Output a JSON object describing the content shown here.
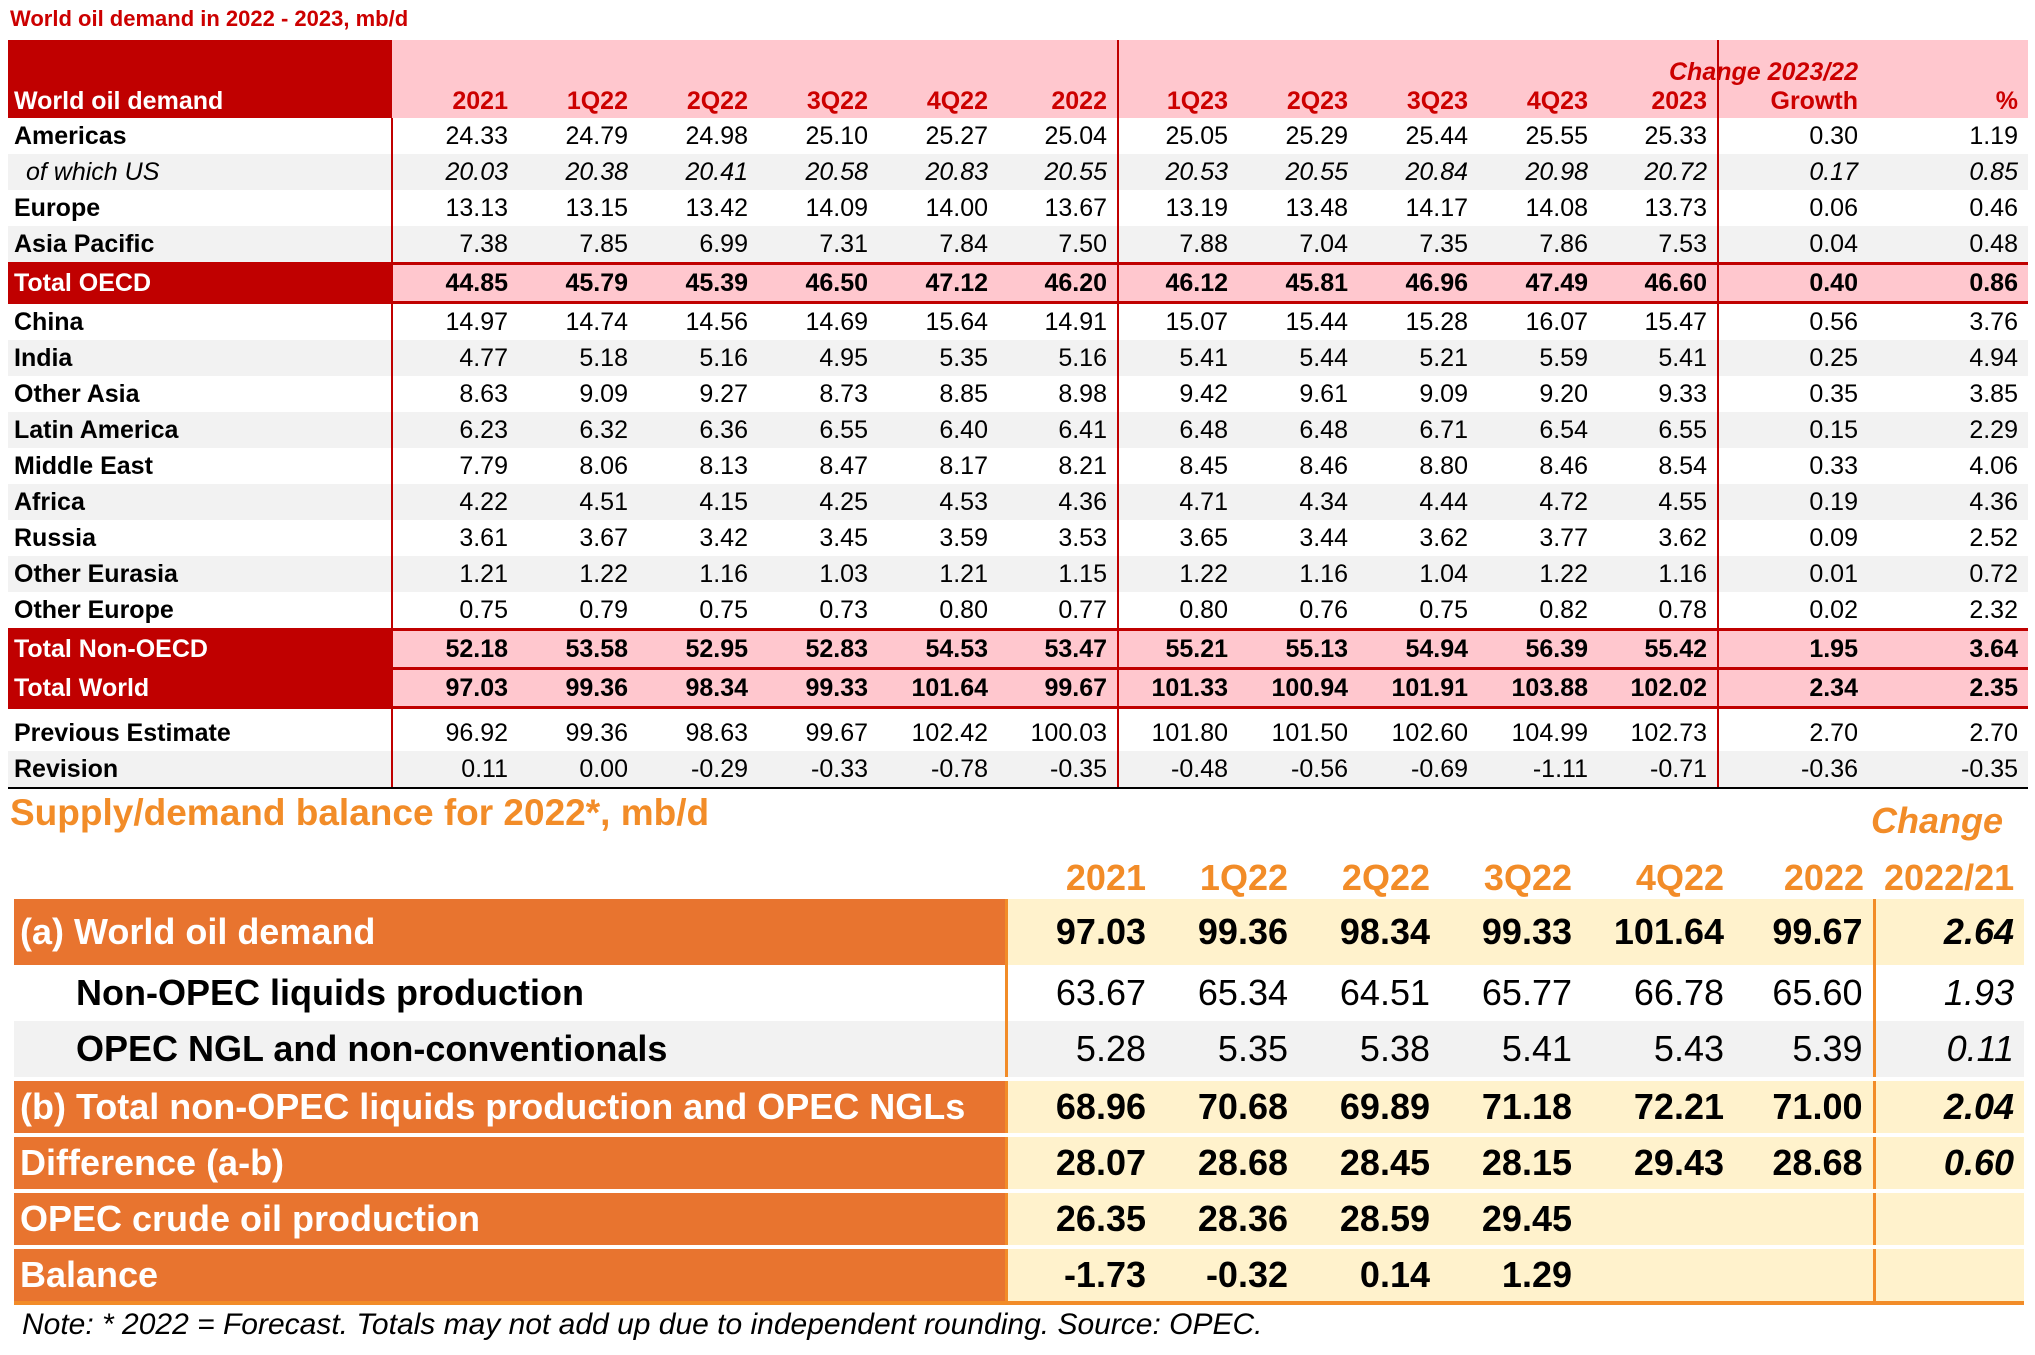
{
  "table1": {
    "title": "World oil demand in 2022 - 2023, mb/d",
    "label_header": "World oil demand",
    "columns": [
      "2021",
      "1Q22",
      "2Q22",
      "3Q22",
      "4Q22",
      "2022",
      "1Q23",
      "2Q23",
      "3Q23",
      "4Q23",
      "2023"
    ],
    "change_caption": "Change 2023/22",
    "growth_header": "Growth",
    "pct_header": "%",
    "rows": [
      {
        "label": "Americas",
        "values": [
          "24.33",
          "24.79",
          "24.98",
          "25.10",
          "25.27",
          "25.04",
          "25.05",
          "25.29",
          "25.44",
          "25.55",
          "25.33"
        ],
        "growth": "0.30",
        "pct": "1.19"
      },
      {
        "label": "of which US",
        "values": [
          "20.03",
          "20.38",
          "20.41",
          "20.58",
          "20.83",
          "20.55",
          "20.53",
          "20.55",
          "20.84",
          "20.98",
          "20.72"
        ],
        "growth": "0.17",
        "pct": "0.85"
      },
      {
        "label": "Europe",
        "values": [
          "13.13",
          "13.15",
          "13.42",
          "14.09",
          "14.00",
          "13.67",
          "13.19",
          "13.48",
          "14.17",
          "14.08",
          "13.73"
        ],
        "growth": "0.06",
        "pct": "0.46"
      },
      {
        "label": "Asia Pacific",
        "values": [
          "7.38",
          "7.85",
          "6.99",
          "7.31",
          "7.84",
          "7.50",
          "7.88",
          "7.04",
          "7.35",
          "7.86",
          "7.53"
        ],
        "growth": "0.04",
        "pct": "0.48"
      },
      {
        "label": "Total OECD",
        "values": [
          "44.85",
          "45.79",
          "45.39",
          "46.50",
          "47.12",
          "46.20",
          "46.12",
          "45.81",
          "46.96",
          "47.49",
          "46.60"
        ],
        "growth": "0.40",
        "pct": "0.86"
      },
      {
        "label": "China",
        "values": [
          "14.97",
          "14.74",
          "14.56",
          "14.69",
          "15.64",
          "14.91",
          "15.07",
          "15.44",
          "15.28",
          "16.07",
          "15.47"
        ],
        "growth": "0.56",
        "pct": "3.76"
      },
      {
        "label": "India",
        "values": [
          "4.77",
          "5.18",
          "5.16",
          "4.95",
          "5.35",
          "5.16",
          "5.41",
          "5.44",
          "5.21",
          "5.59",
          "5.41"
        ],
        "growth": "0.25",
        "pct": "4.94"
      },
      {
        "label": "Other Asia",
        "values": [
          "8.63",
          "9.09",
          "9.27",
          "8.73",
          "8.85",
          "8.98",
          "9.42",
          "9.61",
          "9.09",
          "9.20",
          "9.33"
        ],
        "growth": "0.35",
        "pct": "3.85"
      },
      {
        "label": "Latin America",
        "values": [
          "6.23",
          "6.32",
          "6.36",
          "6.55",
          "6.40",
          "6.41",
          "6.48",
          "6.48",
          "6.71",
          "6.54",
          "6.55"
        ],
        "growth": "0.15",
        "pct": "2.29"
      },
      {
        "label": "Middle East",
        "values": [
          "7.79",
          "8.06",
          "8.13",
          "8.47",
          "8.17",
          "8.21",
          "8.45",
          "8.46",
          "8.80",
          "8.46",
          "8.54"
        ],
        "growth": "0.33",
        "pct": "4.06"
      },
      {
        "label": "Africa",
        "values": [
          "4.22",
          "4.51",
          "4.15",
          "4.25",
          "4.53",
          "4.36",
          "4.71",
          "4.34",
          "4.44",
          "4.72",
          "4.55"
        ],
        "growth": "0.19",
        "pct": "4.36"
      },
      {
        "label": "Russia",
        "values": [
          "3.61",
          "3.67",
          "3.42",
          "3.45",
          "3.59",
          "3.53",
          "3.65",
          "3.44",
          "3.62",
          "3.77",
          "3.62"
        ],
        "growth": "0.09",
        "pct": "2.52"
      },
      {
        "label": "Other Eurasia",
        "values": [
          "1.21",
          "1.22",
          "1.16",
          "1.03",
          "1.21",
          "1.15",
          "1.22",
          "1.16",
          "1.04",
          "1.22",
          "1.16"
        ],
        "growth": "0.01",
        "pct": "0.72"
      },
      {
        "label": "Other Europe",
        "values": [
          "0.75",
          "0.79",
          "0.75",
          "0.73",
          "0.80",
          "0.77",
          "0.80",
          "0.76",
          "0.75",
          "0.82",
          "0.78"
        ],
        "growth": "0.02",
        "pct": "2.32"
      },
      {
        "label": "Total Non-OECD",
        "values": [
          "52.18",
          "53.58",
          "52.95",
          "52.83",
          "54.53",
          "53.47",
          "55.21",
          "55.13",
          "54.94",
          "56.39",
          "55.42"
        ],
        "growth": "1.95",
        "pct": "3.64"
      },
      {
        "label": "Total World",
        "values": [
          "97.03",
          "99.36",
          "98.34",
          "99.33",
          "101.64",
          "99.67",
          "101.33",
          "100.94",
          "101.91",
          "103.88",
          "102.02"
        ],
        "growth": "2.34",
        "pct": "2.35"
      },
      {
        "label": "Previous Estimate",
        "values": [
          "96.92",
          "99.36",
          "98.63",
          "99.67",
          "102.42",
          "100.03",
          "101.80",
          "101.50",
          "102.60",
          "104.99",
          "102.73"
        ],
        "growth": "2.70",
        "pct": "2.70"
      },
      {
        "label": "Revision",
        "values": [
          "0.11",
          "0.00",
          "-0.29",
          "-0.33",
          "-0.78",
          "-0.35",
          "-0.48",
          "-0.56",
          "-0.69",
          "-1.11",
          "-0.71"
        ],
        "growth": "-0.36",
        "pct": "-0.35"
      }
    ]
  },
  "table2": {
    "title": "Supply/demand balance for 2022*, mb/d",
    "change_caption": "Change",
    "columns": [
      "2021",
      "1Q22",
      "2Q22",
      "3Q22",
      "4Q22",
      "2022"
    ],
    "change_header": "2022/21",
    "rows": [
      {
        "label": "(a) World oil demand",
        "values": [
          "97.03",
          "99.36",
          "98.34",
          "99.33",
          "101.64",
          "99.67"
        ],
        "change": "2.64"
      },
      {
        "label": "Non-OPEC liquids production",
        "values": [
          "63.67",
          "65.34",
          "64.51",
          "65.77",
          "66.78",
          "65.60"
        ],
        "change": "1.93"
      },
      {
        "label": "OPEC NGL and non-conventionals",
        "values": [
          "5.28",
          "5.35",
          "5.38",
          "5.41",
          "5.43",
          "5.39"
        ],
        "change": "0.11"
      },
      {
        "label": "(b) Total non-OPEC liquids production and OPEC NGLs",
        "values": [
          "68.96",
          "70.68",
          "69.89",
          "71.18",
          "72.21",
          "71.00"
        ],
        "change": "2.04"
      },
      {
        "label": "Difference (a-b)",
        "values": [
          "28.07",
          "28.68",
          "28.45",
          "28.15",
          "29.43",
          "28.68"
        ],
        "change": "0.60"
      },
      {
        "label": "OPEC crude oil production",
        "values": [
          "26.35",
          "28.36",
          "28.59",
          "29.45",
          "",
          ""
        ],
        "change": ""
      },
      {
        "label": "Balance",
        "values": [
          "-1.73",
          "-0.32",
          "0.14",
          "1.29",
          "",
          ""
        ],
        "change": ""
      }
    ],
    "note": "Note: * 2022 = Forecast. Totals may not add up due to independent rounding. Source: OPEC."
  }
}
